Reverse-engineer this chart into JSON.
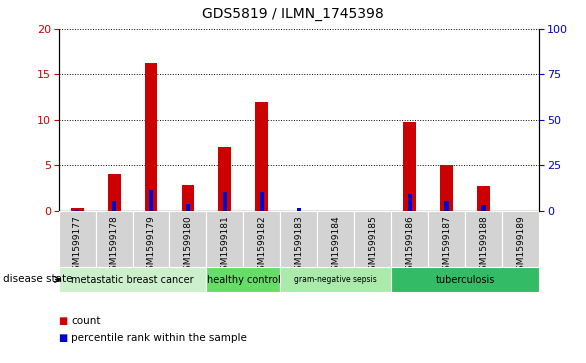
{
  "title": "GDS5819 / ILMN_1745398",
  "samples": [
    "GSM1599177",
    "GSM1599178",
    "GSM1599179",
    "GSM1599180",
    "GSM1599181",
    "GSM1599182",
    "GSM1599183",
    "GSM1599184",
    "GSM1599185",
    "GSM1599186",
    "GSM1599187",
    "GSM1599188",
    "GSM1599189"
  ],
  "counts": [
    0.3,
    4.0,
    16.3,
    2.8,
    7.0,
    12.0,
    0.0,
    0.0,
    0.0,
    9.8,
    5.0,
    2.7,
    0.0
  ],
  "percentiles": [
    0.5,
    5.3,
    11.2,
    3.5,
    10.2,
    10.2,
    1.5,
    0.0,
    0.0,
    9.2,
    5.2,
    3.2,
    0.0
  ],
  "disease_groups": [
    {
      "label": "metastatic breast cancer",
      "start": 0,
      "end": 4,
      "color": "#ccf0cc"
    },
    {
      "label": "healthy control",
      "start": 4,
      "end": 6,
      "color": "#66dd66"
    },
    {
      "label": "gram-negative sepsis",
      "start": 6,
      "end": 9,
      "color": "#aaeaaa"
    },
    {
      "label": "tuberculosis",
      "start": 9,
      "end": 13,
      "color": "#33bb66"
    }
  ],
  "ylim_left": [
    0,
    20
  ],
  "ylim_right": [
    0,
    100
  ],
  "yticks_left": [
    0,
    5,
    10,
    15,
    20
  ],
  "yticks_right": [
    0,
    25,
    50,
    75,
    100
  ],
  "count_color": "#cc0000",
  "percentile_color": "#0000cc",
  "count_bar_width": 0.35,
  "percentile_bar_width": 0.12,
  "bg_color": "#ffffff",
  "label_area_color": "#d3d3d3"
}
